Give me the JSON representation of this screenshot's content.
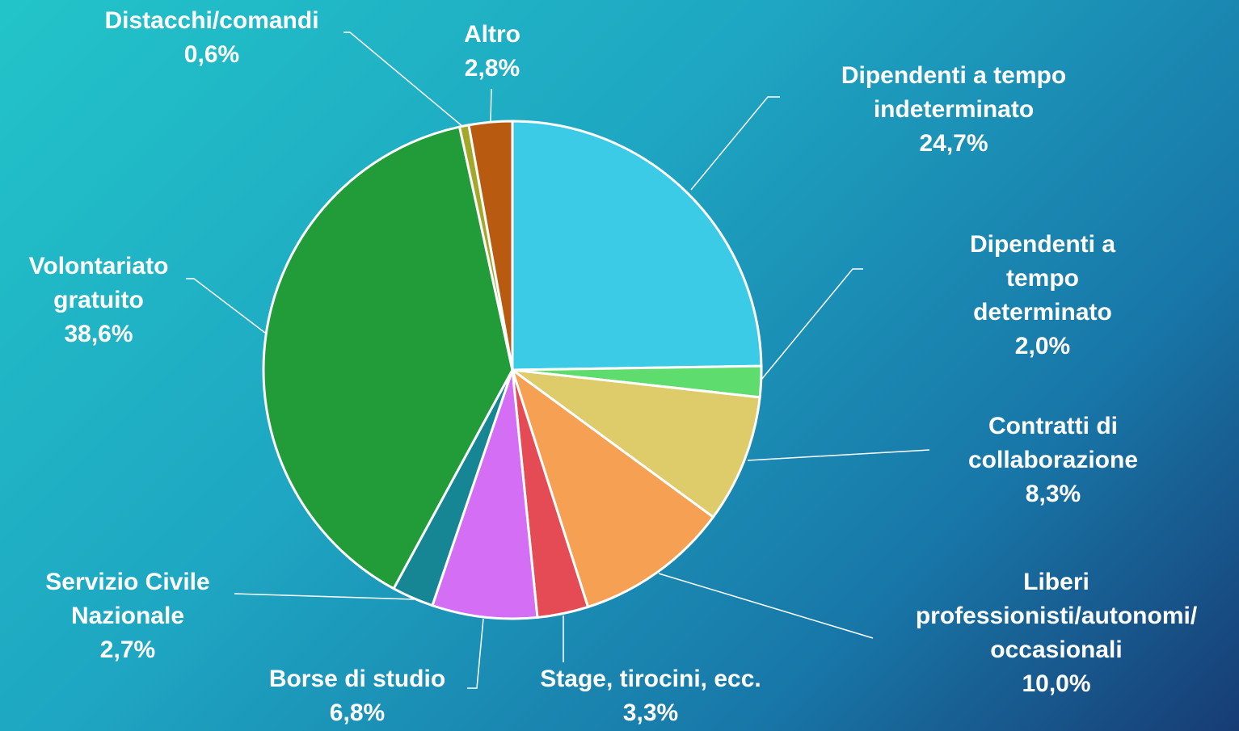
{
  "chart_data": {
    "type": "pie",
    "categories": [
      "Dipendenti a tempo\nindeterminato",
      "Dipendenti a tempo\ndeterminato",
      "Contratti di\ncollaborazione",
      "Liberi\nprofessionisti/autonomi/\noccasionali",
      "Stage, tirocini, ecc.",
      "Borse di studio",
      "Servizio Civile\nNazionale",
      "Volontariato\ngratuito",
      "Distacchi/comandi",
      "Altro"
    ],
    "values": [
      24.7,
      2.0,
      8.3,
      10.0,
      3.3,
      6.8,
      2.7,
      38.6,
      0.6,
      2.8
    ],
    "value_labels": [
      "24,7%",
      "2,0%",
      "8,3%",
      "10,0%",
      "3,3%",
      "6,8%",
      "2,7%",
      "38,6%",
      "0,6%",
      "2,8%"
    ],
    "colors": [
      "#3bcbe6",
      "#5fdc6e",
      "#decb6a",
      "#f5a052",
      "#e54b55",
      "#d46ef5",
      "#168594",
      "#229c38",
      "#a3a72a",
      "#b85a10"
    ]
  }
}
